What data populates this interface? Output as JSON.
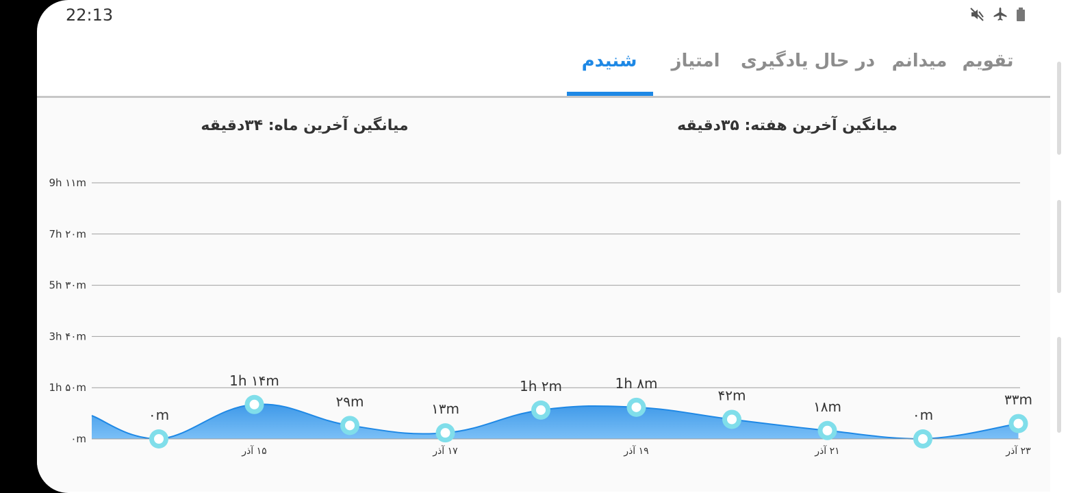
{
  "status": {
    "time": "22:13",
    "icons": [
      "mute-icon",
      "airplane-icon",
      "battery-icon"
    ]
  },
  "tabs": [
    {
      "label": "تقویم",
      "active": false
    },
    {
      "label": "میدانم",
      "active": false
    },
    {
      "label": "در حال یادگیری",
      "active": false
    },
    {
      "label": "امتیاز",
      "active": false
    },
    {
      "label": "شنیدم",
      "active": true
    }
  ],
  "summary": {
    "week": "میانگین آخرین هفته: ۳۵دقیقه",
    "month": "میانگین آخرین ماه: ۳۴دقیقه"
  },
  "colors": {
    "accent": "#1e88e5",
    "area": "#64b5f6",
    "marker": "#80deea"
  },
  "chart_data": {
    "type": "area",
    "y_tick_labels": [
      "۰m",
      "1h ۵۰m",
      "3h ۴۰m",
      "5h ۳۰m",
      "7h ۲۰m",
      "9h ۱۱m"
    ],
    "ylim": [
      0,
      551
    ],
    "x_tick_labels": [
      "۱۵ آذر",
      "۱۷ آذر",
      "۱۹ آذر",
      "۲۱ آذر",
      "۲۳ آذر"
    ],
    "points": [
      {
        "day": 14,
        "minutes": 0,
        "label": "۰m"
      },
      {
        "day": 15,
        "minutes": 74,
        "label": "1h ۱۴m"
      },
      {
        "day": 16,
        "minutes": 29,
        "label": "۲۹m"
      },
      {
        "day": 17,
        "minutes": 13,
        "label": "۱۳m"
      },
      {
        "day": 18,
        "minutes": 62,
        "label": "1h ۲m"
      },
      {
        "day": 19,
        "minutes": 68,
        "label": "1h ۸m"
      },
      {
        "day": 20,
        "minutes": 42,
        "label": "۴۲m"
      },
      {
        "day": 21,
        "minutes": 18,
        "label": "۱۸m"
      },
      {
        "day": 22,
        "minutes": 0,
        "label": "۰m"
      },
      {
        "day": 23,
        "minutes": 33,
        "label": "۳۳m"
      }
    ],
    "grid": true
  }
}
